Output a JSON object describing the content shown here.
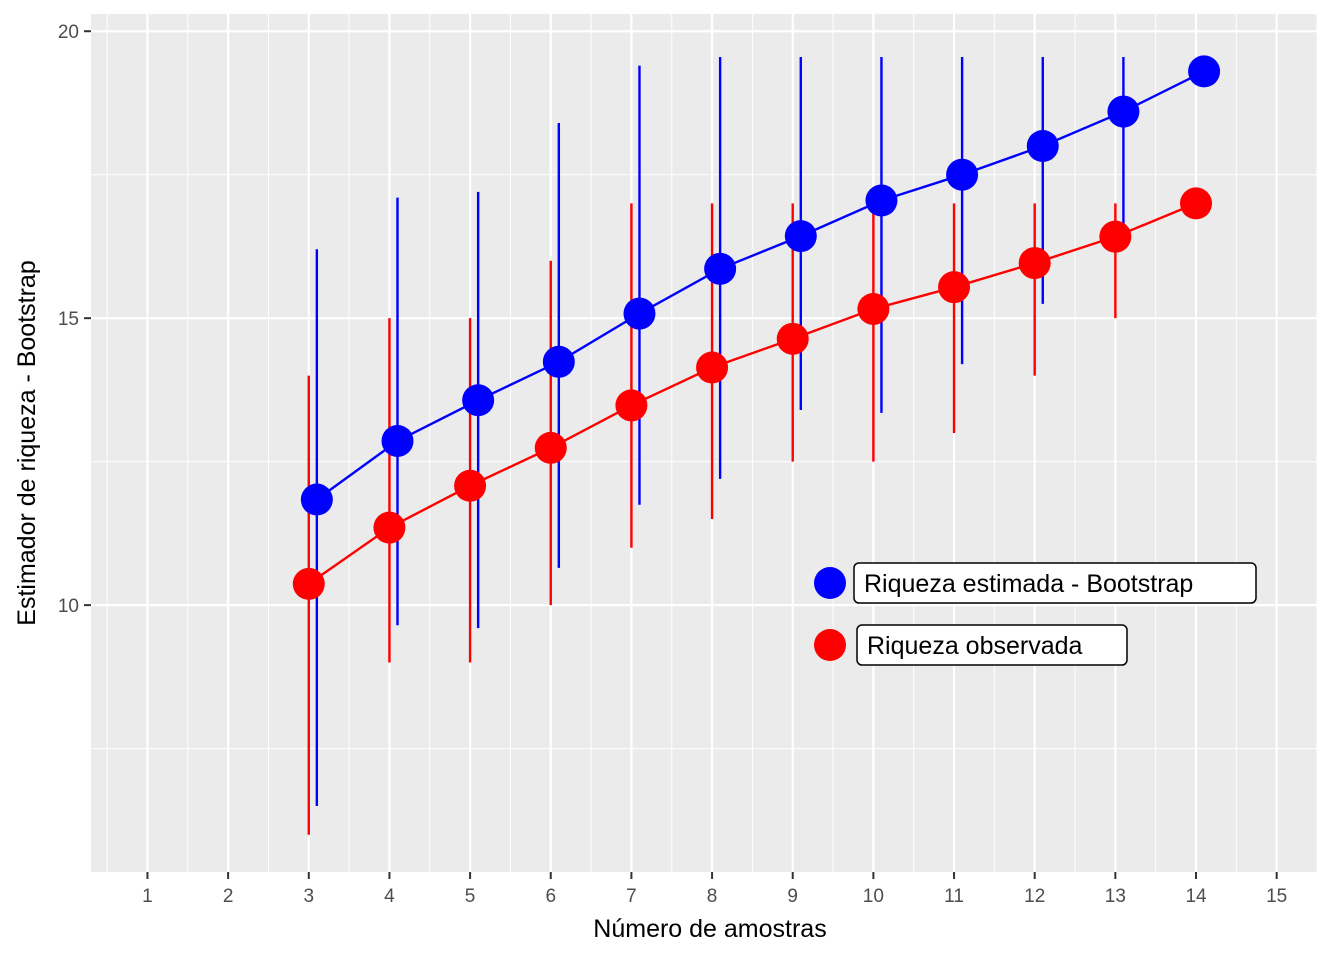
{
  "chart_data": {
    "type": "line",
    "xlabel": "Número de amostras",
    "ylabel": "Estimador de riqueza - Bootstrap",
    "xlim": [
      0.3,
      15.5
    ],
    "ylim": [
      5.35,
      20.3
    ],
    "x_ticks": [
      "1",
      "2",
      "3",
      "4",
      "5",
      "6",
      "7",
      "8",
      "9",
      "10",
      "11",
      "12",
      "13",
      "14",
      "15"
    ],
    "y_ticks": [
      "10",
      "15",
      "20"
    ],
    "grid": true,
    "legend_position": "inside-right",
    "series": [
      {
        "name": "Riqueza estimada - Bootstrap",
        "color": "#0000ff",
        "x_offset": 0.1,
        "x": [
          3,
          4,
          5,
          6,
          7,
          8,
          9,
          10,
          11,
          12,
          13,
          14
        ],
        "y": [
          11.84,
          12.86,
          13.57,
          14.24,
          15.08,
          15.86,
          16.43,
          17.05,
          17.5,
          18.0,
          18.6,
          19.3
        ],
        "lower": [
          6.5,
          9.65,
          9.6,
          10.65,
          11.75,
          12.2,
          13.4,
          13.35,
          14.2,
          15.25,
          16.5,
          null
        ],
        "upper": [
          16.2,
          17.1,
          17.2,
          18.4,
          19.4,
          19.55,
          19.55,
          19.55,
          19.55,
          19.55,
          19.55,
          null
        ]
      },
      {
        "name": "Riqueza observada",
        "color": "#ff0000",
        "x_offset": 0.0,
        "x": [
          3,
          4,
          5,
          6,
          7,
          8,
          9,
          10,
          11,
          12,
          13,
          14
        ],
        "y": [
          10.37,
          11.35,
          12.08,
          12.74,
          13.48,
          14.14,
          14.64,
          15.16,
          15.54,
          15.96,
          16.42,
          17.0
        ],
        "lower": [
          6.0,
          9.0,
          9.0,
          10.0,
          11.0,
          11.5,
          12.5,
          12.5,
          13.0,
          14.0,
          15.0,
          null
        ],
        "upper": [
          14.0,
          15.0,
          15.0,
          16.0,
          17.0,
          17.0,
          17.0,
          17.0,
          17.0,
          17.0,
          17.0,
          null
        ]
      }
    ]
  }
}
